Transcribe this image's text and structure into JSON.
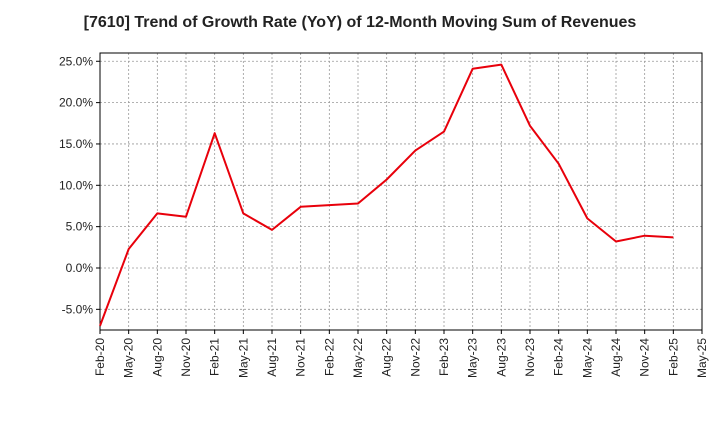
{
  "chart_data": {
    "type": "line",
    "title": "[7610]  Trend of Growth Rate (YoY) of 12-Month Moving Sum of Revenues",
    "xlabel": "",
    "ylabel": "",
    "x_ticks": [
      "Feb-20",
      "May-20",
      "Aug-20",
      "Nov-20",
      "Feb-21",
      "May-21",
      "Aug-21",
      "Nov-21",
      "Feb-22",
      "May-22",
      "Aug-22",
      "Nov-22",
      "Feb-23",
      "May-23",
      "Aug-23",
      "Nov-23",
      "Feb-24",
      "May-24",
      "Aug-24",
      "Nov-24",
      "Feb-25",
      "May-25"
    ],
    "y_tick_labels": [
      "-5.0%",
      "0.0%",
      "5.0%",
      "10.0%",
      "15.0%",
      "20.0%",
      "25.0%"
    ],
    "y_ticks": [
      -5,
      0,
      5,
      10,
      15,
      20,
      25
    ],
    "ylim": [
      -7.5,
      26
    ],
    "grid": true,
    "series": [
      {
        "color": "#e8000b",
        "x": [
          "Feb-20",
          "May-20",
          "Aug-20",
          "Nov-20",
          "Feb-21",
          "May-21",
          "Aug-21",
          "Nov-21",
          "Feb-22",
          "May-22",
          "Aug-22",
          "Nov-22",
          "Feb-23",
          "May-23",
          "Aug-23",
          "Nov-23",
          "Feb-24",
          "May-24",
          "Aug-24",
          "Nov-24",
          "Feb-25"
        ],
        "values": [
          -7.0,
          2.3,
          6.6,
          6.2,
          16.3,
          6.6,
          4.6,
          7.4,
          7.6,
          7.8,
          10.7,
          14.2,
          16.5,
          24.1,
          24.6,
          17.2,
          12.6,
          6.0,
          3.2,
          3.9,
          3.7
        ]
      }
    ]
  }
}
